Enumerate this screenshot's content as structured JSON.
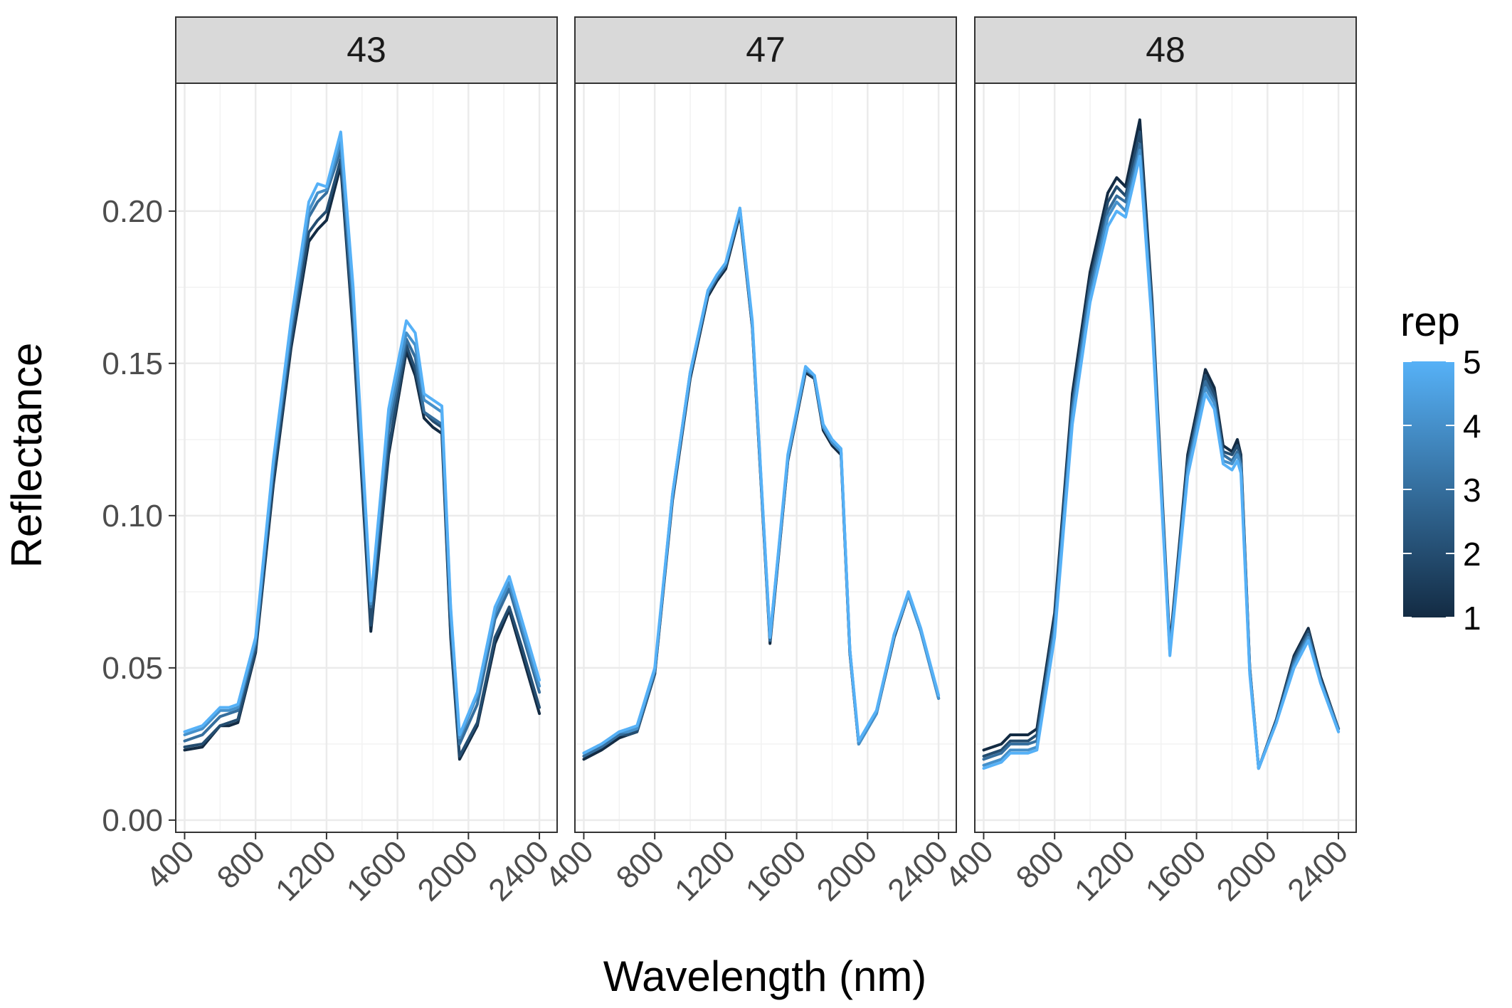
{
  "chart_data": {
    "type": "line",
    "facet_by": "plot",
    "xlabel": "Wavelength (nm)",
    "ylabel": "Reflectance",
    "xlim": [
      350,
      2500
    ],
    "ylim": [
      -0.004,
      0.242
    ],
    "x_ticks": [
      "400",
      "800",
      "1200",
      "1600",
      "2000",
      "2400"
    ],
    "y_ticks": [
      "0.00",
      "0.05",
      "0.10",
      "0.15",
      "0.20"
    ],
    "grid": true,
    "legend": {
      "title": "rep",
      "type": "colorbar",
      "position": "right",
      "labels": [
        "1",
        "2",
        "3",
        "4",
        "5"
      ],
      "low_color": "#132B43",
      "high_color": "#56B1F7"
    },
    "panels": [
      {
        "label": "43",
        "series": [
          {
            "rep": 1,
            "x": [
              400,
              500,
              600,
              650,
              700,
              800,
              900,
              1000,
              1100,
              1150,
              1200,
              1280,
              1350,
              1450,
              1550,
              1650,
              1700,
              1750,
              1800,
              1850,
              1900,
              1950,
              2050,
              2150,
              2230,
              2300,
              2400
            ],
            "y": [
              0.023,
              0.024,
              0.031,
              0.031,
              0.032,
              0.055,
              0.11,
              0.155,
              0.19,
              0.194,
              0.197,
              0.215,
              0.16,
              0.062,
              0.12,
              0.154,
              0.146,
              0.132,
              0.129,
              0.127,
              0.06,
              0.02,
              0.031,
              0.058,
              0.069,
              0.055,
              0.035
            ]
          },
          {
            "rep": 2,
            "x": [
              400,
              500,
              600,
              650,
              700,
              800,
              900,
              1000,
              1100,
              1150,
              1200,
              1280,
              1350,
              1450,
              1550,
              1650,
              1700,
              1750,
              1800,
              1850,
              1900,
              1950,
              2050,
              2150,
              2230,
              2300,
              2400
            ],
            "y": [
              0.024,
              0.025,
              0.031,
              0.032,
              0.033,
              0.056,
              0.112,
              0.157,
              0.193,
              0.197,
              0.2,
              0.217,
              0.162,
              0.064,
              0.122,
              0.156,
              0.148,
              0.134,
              0.131,
              0.129,
              0.061,
              0.021,
              0.032,
              0.06,
              0.07,
              0.057,
              0.037
            ]
          },
          {
            "rep": 3,
            "x": [
              400,
              500,
              600,
              650,
              700,
              800,
              900,
              1000,
              1100,
              1150,
              1200,
              1280,
              1350,
              1450,
              1550,
              1650,
              1700,
              1750,
              1800,
              1850,
              1900,
              1950,
              2050,
              2150,
              2230,
              2300,
              2400
            ],
            "y": [
              0.026,
              0.028,
              0.034,
              0.035,
              0.036,
              0.058,
              0.115,
              0.16,
              0.198,
              0.203,
              0.206,
              0.22,
              0.168,
              0.07,
              0.128,
              0.158,
              0.152,
              0.134,
              0.132,
              0.13,
              0.066,
              0.025,
              0.038,
              0.066,
              0.076,
              0.062,
              0.042
            ]
          },
          {
            "rep": 4,
            "x": [
              400,
              500,
              600,
              650,
              700,
              800,
              900,
              1000,
              1100,
              1150,
              1200,
              1280,
              1350,
              1450,
              1550,
              1650,
              1700,
              1750,
              1800,
              1850,
              1900,
              1950,
              2050,
              2150,
              2230,
              2300,
              2400
            ],
            "y": [
              0.028,
              0.03,
              0.036,
              0.036,
              0.037,
              0.059,
              0.117,
              0.162,
              0.2,
              0.206,
              0.207,
              0.223,
              0.172,
              0.071,
              0.132,
              0.16,
              0.156,
              0.138,
              0.136,
              0.134,
              0.069,
              0.027,
              0.041,
              0.068,
              0.078,
              0.064,
              0.044
            ]
          },
          {
            "rep": 5,
            "x": [
              400,
              500,
              600,
              650,
              700,
              800,
              900,
              1000,
              1100,
              1150,
              1200,
              1280,
              1350,
              1450,
              1550,
              1650,
              1700,
              1750,
              1800,
              1850,
              1900,
              1950,
              2050,
              2150,
              2230,
              2300,
              2400
            ],
            "y": [
              0.029,
              0.031,
              0.037,
              0.037,
              0.038,
              0.06,
              0.118,
              0.164,
              0.203,
              0.209,
              0.208,
              0.226,
              0.175,
              0.072,
              0.135,
              0.164,
              0.16,
              0.14,
              0.138,
              0.136,
              0.07,
              0.028,
              0.042,
              0.07,
              0.08,
              0.066,
              0.046
            ]
          }
        ]
      },
      {
        "label": "47",
        "series": [
          {
            "rep": 1,
            "x": [
              400,
              500,
              600,
              650,
              700,
              800,
              900,
              1000,
              1100,
              1150,
              1200,
              1280,
              1350,
              1450,
              1550,
              1650,
              1700,
              1750,
              1800,
              1850,
              1900,
              1950,
              2050,
              2150,
              2230,
              2300,
              2400
            ],
            "y": [
              0.02,
              0.023,
              0.027,
              0.028,
              0.029,
              0.048,
              0.105,
              0.145,
              0.172,
              0.177,
              0.181,
              0.199,
              0.162,
              0.058,
              0.118,
              0.147,
              0.145,
              0.128,
              0.123,
              0.12,
              0.055,
              0.025,
              0.035,
              0.06,
              0.074,
              0.062,
              0.04
            ]
          },
          {
            "rep": 2,
            "x": [
              400,
              500,
              600,
              650,
              700,
              800,
              900,
              1000,
              1100,
              1150,
              1200,
              1280,
              1350,
              1450,
              1550,
              1650,
              1700,
              1750,
              1800,
              1850,
              1900,
              1950,
              2050,
              2150,
              2230,
              2300,
              2400
            ],
            "y": [
              0.021,
              0.024,
              0.028,
              0.028,
              0.029,
              0.048,
              0.106,
              0.146,
              0.173,
              0.178,
              0.182,
              0.2,
              0.162,
              0.059,
              0.118,
              0.148,
              0.145,
              0.129,
              0.124,
              0.121,
              0.055,
              0.025,
              0.035,
              0.06,
              0.074,
              0.062,
              0.04
            ]
          },
          {
            "rep": 3,
            "x": [
              400,
              500,
              600,
              650,
              700,
              800,
              900,
              1000,
              1100,
              1150,
              1200,
              1280,
              1350,
              1450,
              1550,
              1650,
              1700,
              1750,
              1800,
              1850,
              1900,
              1950,
              2050,
              2150,
              2230,
              2300,
              2400
            ],
            "y": [
              0.021,
              0.024,
              0.028,
              0.029,
              0.03,
              0.049,
              0.106,
              0.146,
              0.173,
              0.178,
              0.182,
              0.2,
              0.163,
              0.059,
              0.119,
              0.148,
              0.146,
              0.129,
              0.124,
              0.121,
              0.056,
              0.025,
              0.035,
              0.061,
              0.074,
              0.062,
              0.04
            ]
          },
          {
            "rep": 4,
            "x": [
              400,
              500,
              600,
              650,
              700,
              800,
              900,
              1000,
              1100,
              1150,
              1200,
              1280,
              1350,
              1450,
              1550,
              1650,
              1700,
              1750,
              1800,
              1850,
              1900,
              1950,
              2050,
              2150,
              2230,
              2300,
              2400
            ],
            "y": [
              0.022,
              0.025,
              0.029,
              0.029,
              0.03,
              0.049,
              0.107,
              0.147,
              0.174,
              0.179,
              0.183,
              0.201,
              0.163,
              0.06,
              0.119,
              0.148,
              0.146,
              0.129,
              0.124,
              0.121,
              0.056,
              0.025,
              0.035,
              0.061,
              0.074,
              0.062,
              0.04
            ]
          },
          {
            "rep": 5,
            "x": [
              400,
              500,
              600,
              650,
              700,
              800,
              900,
              1000,
              1100,
              1150,
              1200,
              1280,
              1350,
              1450,
              1550,
              1650,
              1700,
              1750,
              1800,
              1850,
              1900,
              1950,
              2050,
              2150,
              2230,
              2300,
              2400
            ],
            "y": [
              0.022,
              0.025,
              0.029,
              0.03,
              0.031,
              0.05,
              0.107,
              0.147,
              0.174,
              0.179,
              0.183,
              0.201,
              0.164,
              0.06,
              0.12,
              0.149,
              0.146,
              0.13,
              0.125,
              0.122,
              0.056,
              0.026,
              0.036,
              0.061,
              0.075,
              0.063,
              0.041
            ]
          }
        ]
      },
      {
        "label": "48",
        "series": [
          {
            "rep": 1,
            "x": [
              400,
              500,
              550,
              650,
              700,
              800,
              900,
              1000,
              1100,
              1150,
              1200,
              1280,
              1350,
              1450,
              1550,
              1650,
              1700,
              1750,
              1800,
              1830,
              1850,
              1900,
              1950,
              2050,
              2150,
              2230,
              2300,
              2400
            ],
            "y": [
              0.023,
              0.025,
              0.028,
              0.028,
              0.03,
              0.068,
              0.14,
              0.18,
              0.206,
              0.211,
              0.208,
              0.23,
              0.17,
              0.057,
              0.12,
              0.148,
              0.142,
              0.123,
              0.121,
              0.125,
              0.12,
              0.05,
              0.017,
              0.033,
              0.054,
              0.063,
              0.047,
              0.03
            ]
          },
          {
            "rep": 2,
            "x": [
              400,
              500,
              550,
              650,
              700,
              800,
              900,
              1000,
              1100,
              1150,
              1200,
              1280,
              1350,
              1450,
              1550,
              1650,
              1700,
              1750,
              1800,
              1830,
              1850,
              1900,
              1950,
              2050,
              2150,
              2230,
              2300,
              2400
            ],
            "y": [
              0.021,
              0.023,
              0.026,
              0.026,
              0.028,
              0.066,
              0.137,
              0.177,
              0.203,
              0.208,
              0.205,
              0.226,
              0.168,
              0.056,
              0.118,
              0.146,
              0.14,
              0.121,
              0.12,
              0.123,
              0.119,
              0.05,
              0.017,
              0.033,
              0.053,
              0.062,
              0.046,
              0.03
            ]
          },
          {
            "rep": 3,
            "x": [
              400,
              500,
              550,
              650,
              700,
              800,
              900,
              1000,
              1100,
              1150,
              1200,
              1280,
              1350,
              1450,
              1550,
              1650,
              1700,
              1750,
              1800,
              1830,
              1850,
              1900,
              1950,
              2050,
              2150,
              2230,
              2300,
              2400
            ],
            "y": [
              0.02,
              0.022,
              0.025,
              0.025,
              0.026,
              0.064,
              0.135,
              0.175,
              0.2,
              0.205,
              0.203,
              0.222,
              0.166,
              0.055,
              0.116,
              0.144,
              0.138,
              0.12,
              0.118,
              0.121,
              0.117,
              0.049,
              0.017,
              0.032,
              0.052,
              0.061,
              0.046,
              0.03
            ]
          },
          {
            "rep": 4,
            "x": [
              400,
              500,
              550,
              650,
              700,
              800,
              900,
              1000,
              1100,
              1150,
              1200,
              1280,
              1350,
              1450,
              1550,
              1650,
              1700,
              1750,
              1800,
              1830,
              1850,
              1900,
              1950,
              2050,
              2150,
              2230,
              2300,
              2400
            ],
            "y": [
              0.018,
              0.02,
              0.023,
              0.023,
              0.024,
              0.062,
              0.133,
              0.172,
              0.198,
              0.203,
              0.2,
              0.22,
              0.164,
              0.055,
              0.115,
              0.142,
              0.137,
              0.118,
              0.117,
              0.12,
              0.116,
              0.049,
              0.017,
              0.032,
              0.051,
              0.06,
              0.045,
              0.029
            ]
          },
          {
            "rep": 5,
            "x": [
              400,
              500,
              550,
              650,
              700,
              800,
              900,
              1000,
              1100,
              1150,
              1200,
              1280,
              1350,
              1450,
              1550,
              1650,
              1700,
              1750,
              1800,
              1830,
              1850,
              1900,
              1950,
              2050,
              2150,
              2230,
              2300,
              2400
            ],
            "y": [
              0.017,
              0.019,
              0.022,
              0.022,
              0.023,
              0.06,
              0.13,
              0.17,
              0.195,
              0.2,
              0.198,
              0.218,
              0.162,
              0.054,
              0.113,
              0.14,
              0.135,
              0.117,
              0.115,
              0.118,
              0.114,
              0.048,
              0.017,
              0.032,
              0.05,
              0.059,
              0.045,
              0.029
            ]
          }
        ]
      }
    ]
  }
}
